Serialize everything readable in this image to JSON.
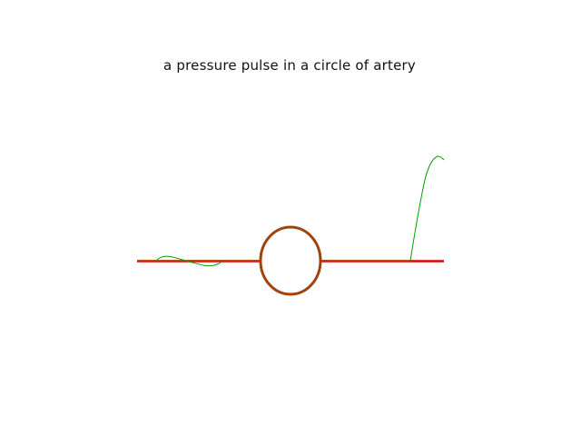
{
  "title": "a pressure pulse in a circle of artery",
  "colors": {
    "baseline": "#e00000",
    "artery": "#a0440a",
    "pulse": "#00a000",
    "background": "#ffffff"
  }
}
